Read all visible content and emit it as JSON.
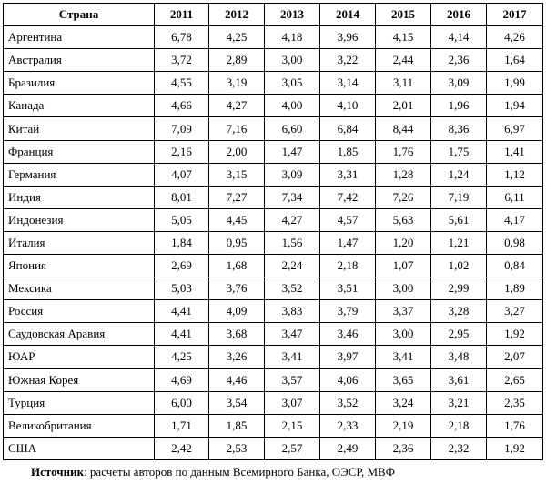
{
  "table": {
    "headers": [
      "Страна",
      "2011",
      "2012",
      "2013",
      "2014",
      "2015",
      "2016",
      "2017"
    ],
    "rows": [
      [
        "Аргентина",
        "6,78",
        "4,25",
        "4,18",
        "3,96",
        "4,15",
        "4,14",
        "4,26"
      ],
      [
        "Австралия",
        "3,72",
        "2,89",
        "3,00",
        "3,22",
        "2,44",
        "2,36",
        "1,64"
      ],
      [
        "Бразилия",
        "4,55",
        "3,19",
        "3,05",
        "3,14",
        "3,11",
        "3,09",
        "1,99"
      ],
      [
        "Канада",
        "4,66",
        "4,27",
        "4,00",
        "4,10",
        "2,01",
        "1,96",
        "1,94"
      ],
      [
        "Китай",
        "7,09",
        "7,16",
        "6,60",
        "6,84",
        "8,44",
        "8,36",
        "6,97"
      ],
      [
        "Франция",
        "2,16",
        "2,00",
        "1,47",
        "1,85",
        "1,76",
        "1,75",
        "1,41"
      ],
      [
        "Германия",
        "4,07",
        "3,15",
        "3,09",
        "3,31",
        "1,28",
        "1,24",
        "1,12"
      ],
      [
        "Индия",
        "8,01",
        "7,27",
        "7,34",
        "7,42",
        "7,26",
        "7,19",
        "6,11"
      ],
      [
        "Индонезия",
        "5,05",
        "4,45",
        "4,27",
        "4,57",
        "5,63",
        "5,61",
        "4,17"
      ],
      [
        "Италия",
        "1,84",
        "0,95",
        "1,56",
        "1,47",
        "1,20",
        "1,21",
        "0,98"
      ],
      [
        "Япония",
        "2,69",
        "1,68",
        "2,24",
        "2,18",
        "1,07",
        "1,02",
        "0,84"
      ],
      [
        "Мексика",
        "5,03",
        "3,76",
        "3,52",
        "3,51",
        "3,00",
        "2,99",
        "1,89"
      ],
      [
        "Россия",
        "4,41",
        "4,09",
        "3,83",
        "3,79",
        "3,37",
        "3,28",
        "3,27"
      ],
      [
        "Саудовская Аравия",
        "4,41",
        "3,68",
        "3,47",
        "3,46",
        "3,00",
        "2,95",
        "1,92"
      ],
      [
        "ЮАР",
        "4,25",
        "3,26",
        "3,41",
        "3,97",
        "3,41",
        "3,48",
        "2,07"
      ],
      [
        "Южная Корея",
        "4,69",
        "4,46",
        "3,57",
        "4,06",
        "3,65",
        "3,61",
        "2,65"
      ],
      [
        "Турция",
        "6,00",
        "3,54",
        "3,07",
        "3,52",
        "3,24",
        "3,21",
        "2,35"
      ],
      [
        "Великобритания",
        "1,71",
        "1,85",
        "2,15",
        "2,33",
        "2,19",
        "2,18",
        "1,76"
      ],
      [
        "США",
        "2,42",
        "2,53",
        "2,57",
        "2,49",
        "2,36",
        "2,32",
        "1,92"
      ]
    ]
  },
  "source": {
    "label": "Источник",
    "text": ": расчеты авторов по данным Всемирного Банка, ОЭСР, МВФ"
  }
}
